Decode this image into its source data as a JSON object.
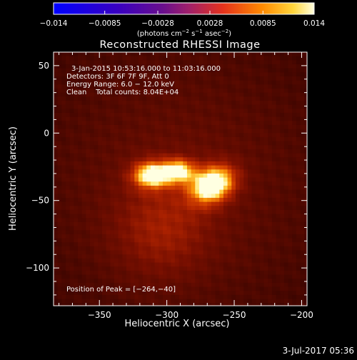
{
  "chart_data": {
    "type": "heatmap",
    "title": "Reconstructed RHESSI Image",
    "xlabel": "Heliocentric X (arcsec)",
    "ylabel": "Heliocentric Y (arcsec)",
    "xlim": [
      -384,
      -196
    ],
    "ylim": [
      -128,
      60
    ],
    "xticks": [
      -350,
      -300,
      -250,
      -200
    ],
    "xtick_labels": [
      "−350",
      "−300",
      "−250",
      "−200"
    ],
    "yticks": [
      50,
      0,
      -50,
      -100
    ],
    "ytick_labels": [
      "50",
      "0",
      "−50",
      "−100"
    ],
    "colorbar": {
      "min": -0.014,
      "max": 0.014,
      "ticks": [
        -0.014,
        -0.0085,
        -0.0028,
        0.0028,
        0.0085,
        0.014
      ],
      "tick_labels": [
        "−0.014",
        "−0.0085",
        "−0.0028",
        "0.0028",
        "0.0085",
        "0.014"
      ],
      "unit_label_parts": [
        "(photons cm",
        "−2",
        " s",
        "−1",
        " asec",
        "−2",
        ")"
      ]
    },
    "info_lines": [
      "3-Jan-2015 10:53:16.000 to 11:03:16.000",
      "Detectors: 3F 6F 7F 9F, Att 0",
      "Energy Range: 6.0 − 12.0 keV",
      "Clean    Total counts: 8.04E+04"
    ],
    "peak_label": "Position of Peak = [−264,−40]",
    "peak_position": [
      -264,
      -40
    ],
    "sources": [
      {
        "x": -266,
        "y": -38,
        "peak": 0.014
      },
      {
        "x": -311,
        "y": -31,
        "peak": 0.012
      },
      {
        "x": -291,
        "y": -28,
        "peak": 0.01
      },
      {
        "x": -304,
        "y": -72,
        "peak": 0.0035
      }
    ],
    "colors": {
      "background": "#000000",
      "text": "#ffffff"
    }
  },
  "footer": {
    "date": "3-Jul-2017 05:36"
  }
}
